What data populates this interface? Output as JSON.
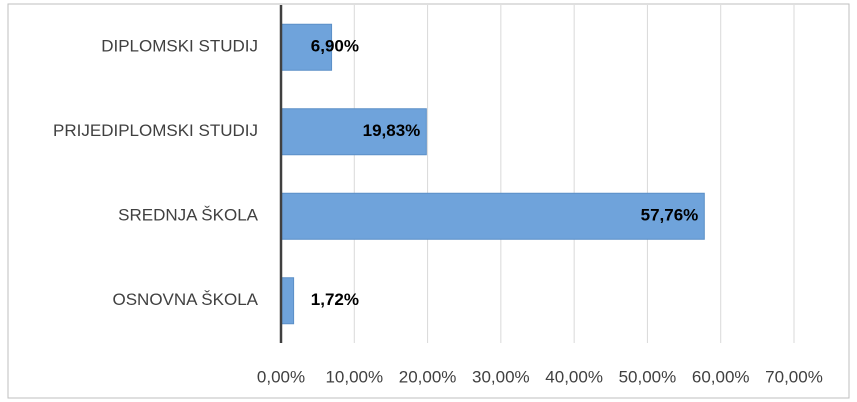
{
  "chart_data": {
    "type": "barh",
    "categories": [
      "DIPLOMSKI STUDIJ",
      "PRIJEDIPLOMSKI STUDIJ",
      "SREDNJA ŠKOLA",
      "OSNOVNA ŠKOLA"
    ],
    "values": [
      6.9,
      19.83,
      57.76,
      1.72
    ],
    "value_labels": [
      "6,90%",
      "19,83%",
      "57,76%",
      "1,72%"
    ],
    "color": "#6fa3db",
    "xlim": [
      0,
      70
    ],
    "xticks": [
      {
        "value": 0,
        "label": "0,00%"
      },
      {
        "value": 10,
        "label": "10,00%"
      },
      {
        "value": 20,
        "label": "20,00%"
      },
      {
        "value": 30,
        "label": "30,00%"
      },
      {
        "value": 40,
        "label": "40,00%"
      },
      {
        "value": 50,
        "label": "50,00%"
      },
      {
        "value": 60,
        "label": "60,00%"
      },
      {
        "value": 70,
        "label": "70,00%"
      }
    ],
    "grid": true
  }
}
